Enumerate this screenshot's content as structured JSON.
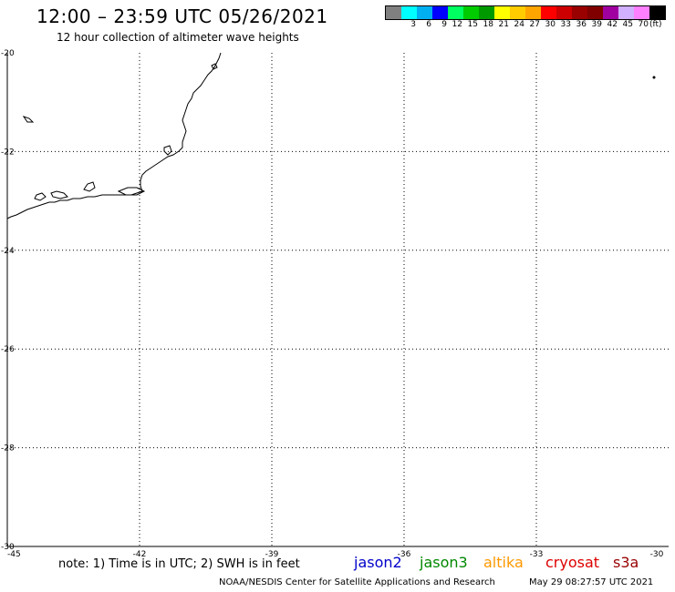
{
  "header": {
    "title": "12:00 – 23:59 UTC 05/26/2021",
    "subtitle": "12 hour collection of altimeter wave heights"
  },
  "colorbar": {
    "unit": "(ft)",
    "bins": [
      {
        "label": "",
        "color": "#808080"
      },
      {
        "label": "3",
        "color": "#00ffff"
      },
      {
        "label": "6",
        "color": "#00b0f0"
      },
      {
        "label": "9",
        "color": "#0000ff"
      },
      {
        "label": "12",
        "color": "#00ff60"
      },
      {
        "label": "15",
        "color": "#00cc00"
      },
      {
        "label": "18",
        "color": "#009900"
      },
      {
        "label": "21",
        "color": "#ffff00"
      },
      {
        "label": "24",
        "color": "#ffcc00"
      },
      {
        "label": "27",
        "color": "#ffa500"
      },
      {
        "label": "30",
        "color": "#ff0000"
      },
      {
        "label": "33",
        "color": "#cc0000"
      },
      {
        "label": "36",
        "color": "#990000"
      },
      {
        "label": "39",
        "color": "#800000"
      },
      {
        "label": "42",
        "color": "#a000a0"
      },
      {
        "label": "45",
        "color": "#d0b0ff"
      },
      {
        "label": "70",
        "color": "#ff80ff"
      },
      {
        "label": "",
        "color": "#000000"
      }
    ]
  },
  "map": {
    "lat_labels": [
      "-20",
      "-22",
      "-24",
      "-26",
      "-28",
      "-30"
    ],
    "lon_labels": [
      "-45",
      "-42",
      "-39",
      "-36",
      "-33",
      "-30"
    ]
  },
  "footer": {
    "note": "note:  1) Time is in UTC;  2) SWH is in feet",
    "satellites": [
      {
        "name": "jason2",
        "color": "#0000cc"
      },
      {
        "name": "jason3",
        "color": "#008800"
      },
      {
        "name": "altika",
        "color": "#ff9900"
      },
      {
        "name": "cryosat",
        "color": "#dd0000"
      },
      {
        "name": "s3a",
        "color": "#990000"
      }
    ],
    "credit": "NOAA/NESDIS Center for Satellite Applications and Research",
    "timestamp": "May 29 08:27:57 UTC 2021"
  }
}
